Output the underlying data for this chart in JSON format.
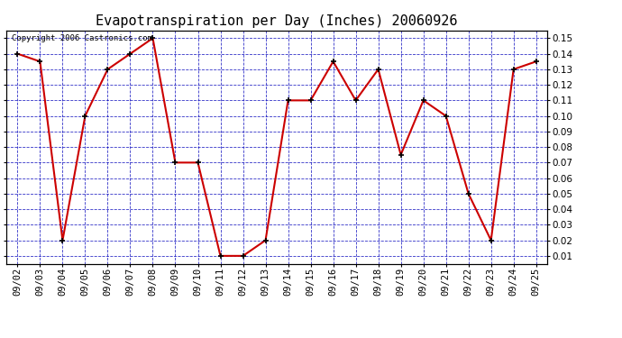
{
  "title": "Evapotranspiration per Day (Inches) 20060926",
  "copyright_text": "Copyright 2006 Castronics.com",
  "x_labels": [
    "09/02",
    "09/03",
    "09/04",
    "09/05",
    "09/06",
    "09/07",
    "09/08",
    "09/09",
    "09/10",
    "09/11",
    "09/12",
    "09/13",
    "09/14",
    "09/15",
    "09/16",
    "09/17",
    "09/18",
    "09/19",
    "09/20",
    "09/21",
    "09/22",
    "09/23",
    "09/24",
    "09/25"
  ],
  "y_values": [
    0.14,
    0.135,
    0.02,
    0.1,
    0.13,
    0.14,
    0.15,
    0.07,
    0.07,
    0.01,
    0.01,
    0.02,
    0.11,
    0.11,
    0.135,
    0.11,
    0.13,
    0.075,
    0.11,
    0.1,
    0.05,
    0.02,
    0.13,
    0.135
  ],
  "line_color": "#cc0000",
  "marker_color": "#000000",
  "background_color": "#ffffff",
  "plot_bg_color": "#ffffff",
  "grid_color": "#0000bb",
  "ylim_min": 0.005,
  "ylim_max": 0.155,
  "yticks": [
    0.01,
    0.02,
    0.03,
    0.04,
    0.05,
    0.06,
    0.07,
    0.08,
    0.09,
    0.1,
    0.11,
    0.12,
    0.13,
    0.14,
    0.15
  ],
  "title_fontsize": 11,
  "tick_fontsize": 7.5,
  "copyright_fontsize": 6.5
}
